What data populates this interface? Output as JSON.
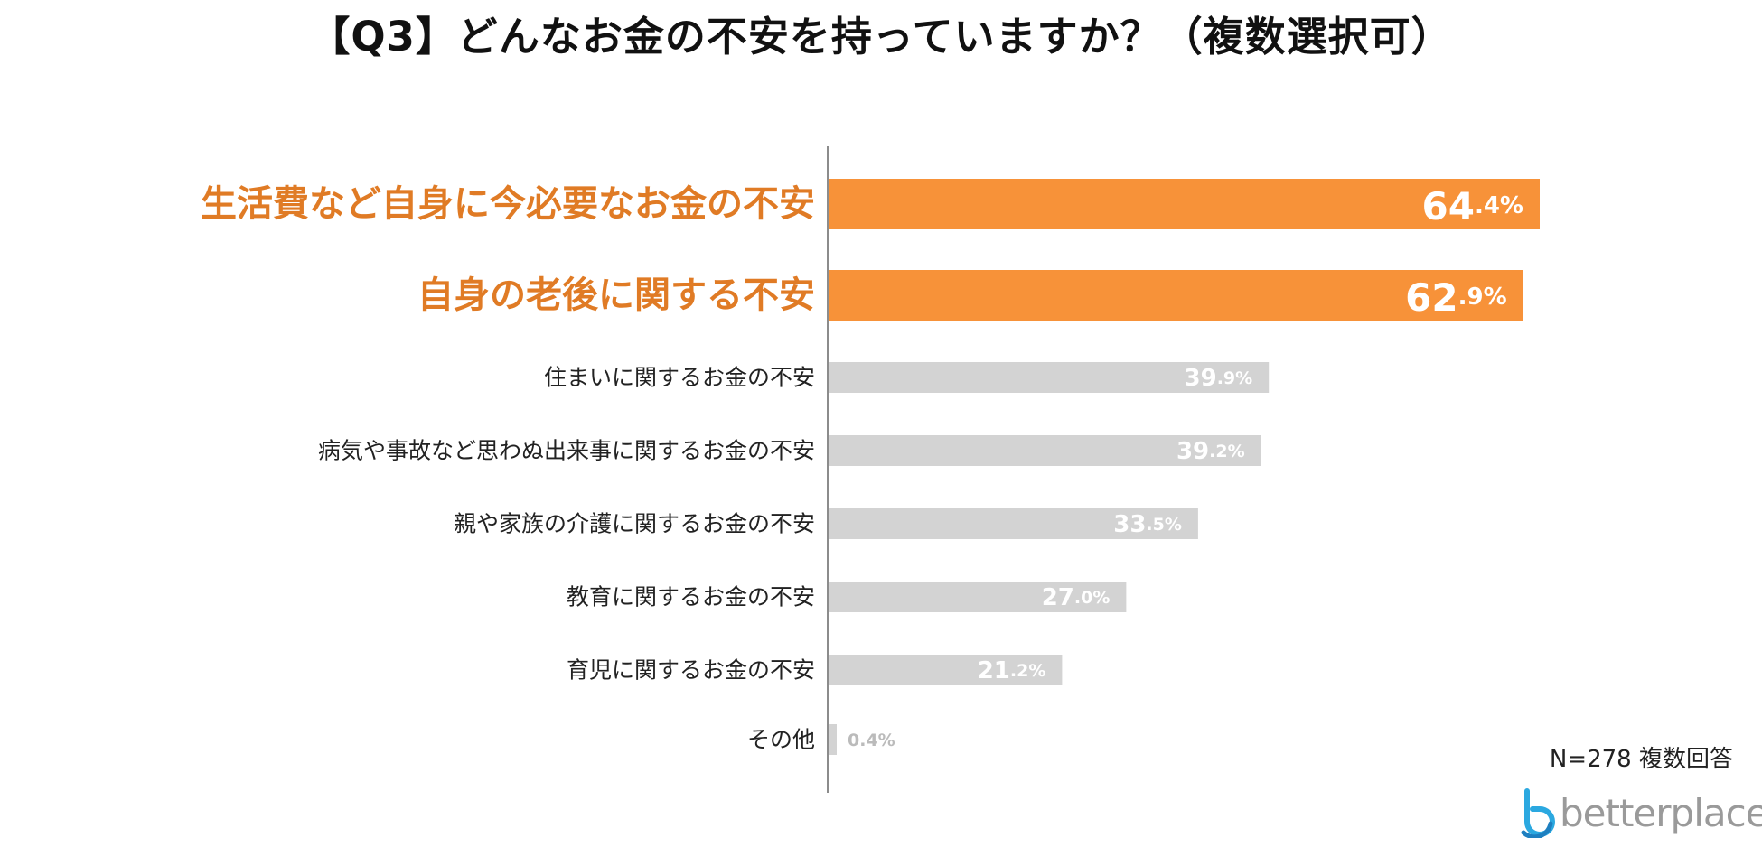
{
  "chart_data": {
    "type": "bar",
    "orientation": "horizontal",
    "title": "【Q3】どんなお金の不安を持っていますか？（複数選択可）",
    "xlabel": "",
    "ylabel": "",
    "xlim": [
      0,
      70
    ],
    "unit": "%",
    "grid": false,
    "categories": [
      "生活費など自身に今必要なお金の不安",
      "自身の老後に関する不安",
      "住まいに関するお金の不安",
      "病気や事故など思わぬ出来事に関するお金の不安",
      "親や家族の介護に関するお金の不安",
      "教育に関するお金の不安",
      "育児に関するお金の不安",
      "その他"
    ],
    "values": [
      64.4,
      62.9,
      39.9,
      39.2,
      33.5,
      27.0,
      21.2,
      0.4
    ],
    "value_labels": [
      "64.4%",
      "62.9%",
      "39.9%",
      "39.2%",
      "33.5%",
      "27.0%",
      "21.2%",
      "0.4%"
    ],
    "highlighted": [
      true,
      true,
      false,
      false,
      false,
      false,
      false,
      false
    ],
    "colors": {
      "highlight_bar": "#F79239",
      "highlight_label": "#E07B25",
      "default_bar": "#D3D3D3",
      "default_label": "#222222",
      "bar_value_text": "#FFFFFF",
      "outside_value_text": "#BBBBBB",
      "axis_line": "#8C8C8C"
    }
  },
  "annotations": {
    "note": "N=278 複数回答"
  },
  "logo": {
    "text": "betterplace",
    "icon": "betterplace-logo-icon",
    "colors": {
      "icon_primary": "#2BA8E0",
      "icon_secondary": "#1E7FC0",
      "text": "#9A9A9A"
    }
  }
}
